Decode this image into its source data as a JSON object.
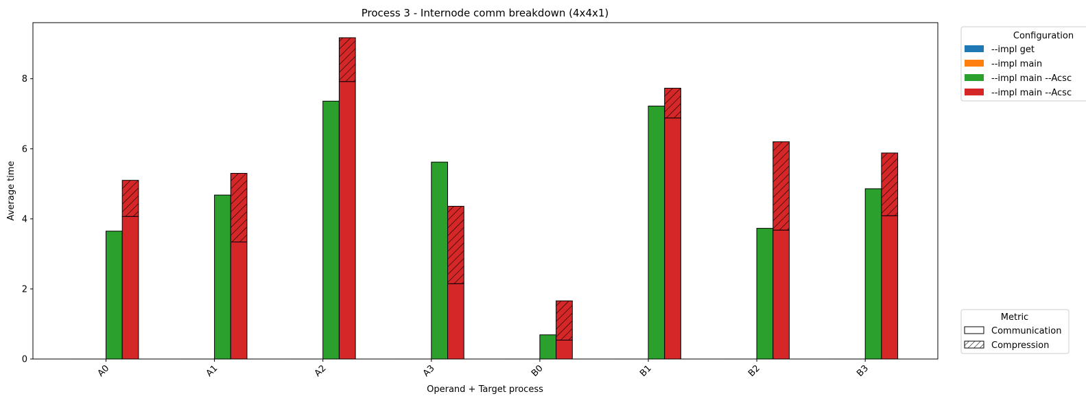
{
  "chart_data": {
    "type": "bar",
    "title": "Process 3 - Internode comm breakdown (4x4x1)",
    "xlabel": "Operand + Target process",
    "ylabel": "Average time",
    "categories": [
      "A0",
      "A1",
      "A2",
      "A3",
      "B0",
      "B1",
      "B2",
      "B3"
    ],
    "ylim": [
      0,
      9.6
    ],
    "yticks": [
      0,
      2,
      4,
      6,
      8
    ],
    "grid": false,
    "stacked_by_metric": true,
    "series": [
      {
        "name": "--impl get",
        "color": "#1f77b4",
        "communication": [
          0,
          0,
          0,
          0,
          0,
          0,
          0,
          0
        ],
        "compression": [
          0,
          0,
          0,
          0,
          0,
          0,
          0,
          0
        ]
      },
      {
        "name": "--impl main",
        "color": "#ff7f0e",
        "communication": [
          0,
          0,
          0,
          0,
          0,
          0,
          0,
          0
        ],
        "compression": [
          0,
          0,
          0,
          0,
          0,
          0,
          0,
          0
        ]
      },
      {
        "name": "--impl main --Acsc",
        "color": "#2ca02c",
        "communication": [
          3.65,
          4.68,
          7.36,
          5.62,
          0.69,
          7.22,
          3.73,
          4.86
        ],
        "compression": [
          0,
          0,
          0,
          0,
          0,
          0,
          0,
          0
        ]
      },
      {
        "name": "--impl main --Acsc",
        "color": "#d62728",
        "communication": [
          4.07,
          3.34,
          7.92,
          2.15,
          0.54,
          6.88,
          3.68,
          4.09
        ],
        "compression": [
          1.03,
          1.96,
          1.25,
          2.21,
          1.12,
          0.85,
          2.52,
          1.79
        ]
      }
    ],
    "legend_config": {
      "title": "Configuration",
      "placement": "outside top-right",
      "labels": [
        "--impl get",
        "--impl main",
        "--impl main --Acsc",
        "--impl main --Acsc"
      ],
      "colors": [
        "#1f77b4",
        "#ff7f0e",
        "#2ca02c",
        "#d62728"
      ]
    },
    "legend_metric": {
      "title": "Metric",
      "placement": "outside bottom-right",
      "labels": [
        "Communication",
        "Compression"
      ],
      "hatch": [
        "none",
        "diagonal"
      ]
    }
  }
}
